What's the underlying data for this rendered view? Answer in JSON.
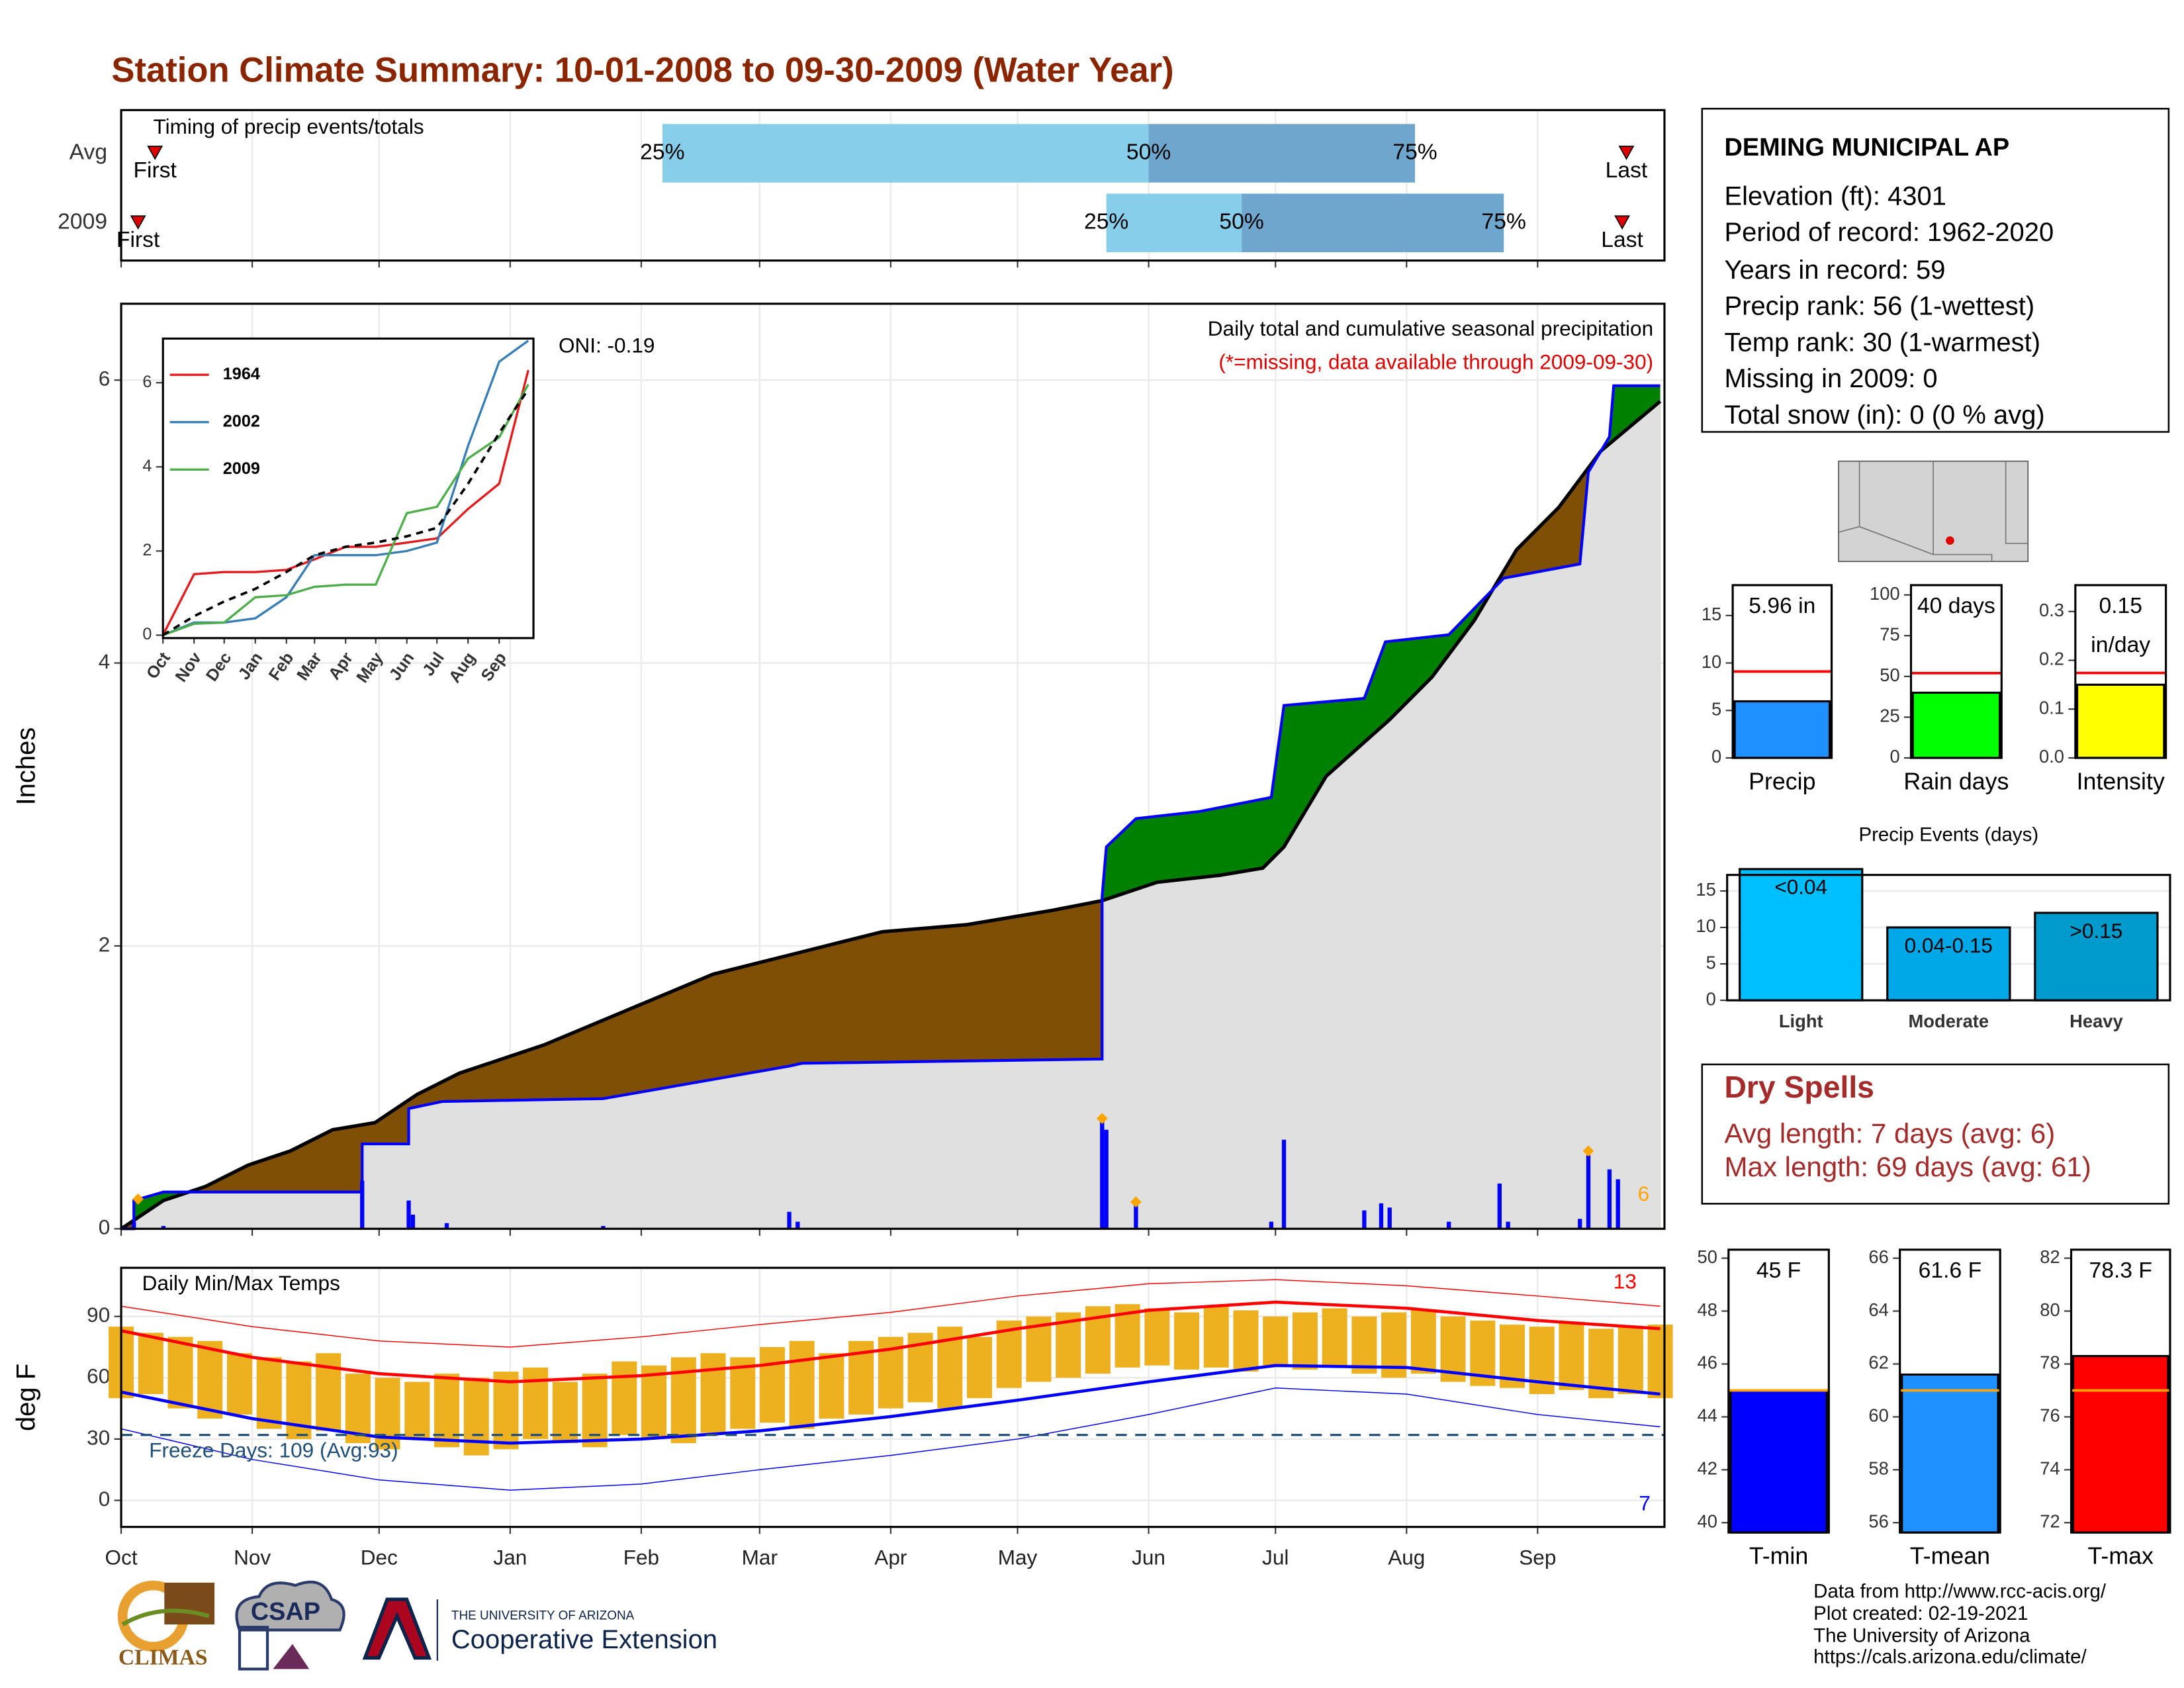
{
  "title": "Station Climate Summary: 10-01-2008 to 09-30-2009 (Water Year)",
  "station": {
    "name": "DEMING MUNICIPAL AP",
    "lines": [
      "Elevation (ft): 4301",
      "Period of record: 1962-2020",
      "Years in record: 59",
      "Precip rank: 56 (1-wettest)",
      "Temp rank: 30 (1-warmest)",
      "Missing in 2009: 0",
      "Total snow (in): 0 (0 % avg)"
    ]
  },
  "dry_spells": {
    "title": "Dry Spells",
    "lines": [
      "Avg length: 7 days (avg: 6)",
      "Max length: 69 days (avg: 61)"
    ]
  },
  "credits": [
    "Data from http://www.rcc-acis.org/",
    "Plot created: 02-19-2021",
    "The University of Arizona",
    "https://cals.arizona.edu/climate/"
  ],
  "logos": [
    "CLIMAS",
    "CSAP",
    "THE UNIVERSITY OF ARIZONA",
    "Cooperative Extension"
  ],
  "chart_data": [
    {
      "type": "timing",
      "title": "Timing of precip events/totals",
      "categories": [
        "Avg",
        "2009"
      ],
      "first": [
        8,
        4
      ],
      "p25": [
        128,
        233
      ],
      "p50": [
        243,
        265
      ],
      "p75": [
        306,
        327
      ],
      "last": [
        356,
        355
      ],
      "first_label": "First",
      "last_label": "Last",
      "pct_labels": [
        "25%",
        "50%",
        "75%"
      ],
      "colors": [
        "#87ceeb",
        "#6ea6cd"
      ],
      "marker_color": "#e00000",
      "xlim": [
        0,
        365
      ],
      "xticks": [
        0,
        31,
        61,
        92,
        123,
        151,
        182,
        212,
        243,
        273,
        304,
        335
      ]
    },
    {
      "type": "cumulative",
      "ylabel": "Inches",
      "oni": "ONI: -0.19",
      "annotations": [
        "Daily total and cumulative seasonal precipitation",
        "(*=missing, data available through 2009-09-30)"
      ],
      "record_count": 6,
      "xlim": [
        0,
        365
      ],
      "xticks": [
        0,
        31,
        61,
        92,
        123,
        151,
        182,
        212,
        243,
        273,
        304,
        335
      ],
      "ylim": [
        0,
        6.54
      ],
      "yticks": [
        0,
        2,
        4,
        6
      ],
      "observed": {
        "x": [
          0,
          3,
          3,
          10,
          57,
          57,
          68,
          68,
          76,
          114,
          158,
          161,
          232,
          232,
          233,
          240,
          255,
          272,
          275,
          294,
          299,
          314,
          327,
          345,
          347,
          352,
          353,
          364
        ],
        "values": [
          0,
          0,
          0.2,
          0.26,
          0.26,
          0.6,
          0.6,
          0.85,
          0.9,
          0.92,
          1.15,
          1.17,
          1.2,
          2.35,
          2.7,
          2.9,
          2.95,
          3.05,
          3.7,
          3.75,
          4.15,
          4.2,
          4.6,
          4.7,
          5.35,
          5.6,
          5.96,
          5.96
        ]
      },
      "average": {
        "x": [
          0,
          10,
          20,
          30,
          40,
          50,
          60,
          70,
          80,
          100,
          120,
          140,
          160,
          180,
          200,
          220,
          232,
          245,
          260,
          270,
          275,
          285,
          300,
          310,
          320,
          330,
          340,
          350,
          364
        ],
        "values": [
          0,
          0.2,
          0.3,
          0.45,
          0.55,
          0.7,
          0.75,
          0.95,
          1.1,
          1.3,
          1.55,
          1.8,
          1.95,
          2.1,
          2.15,
          2.25,
          2.32,
          2.45,
          2.5,
          2.55,
          2.7,
          3.2,
          3.6,
          3.9,
          4.3,
          4.8,
          5.1,
          5.5,
          5.85
        ]
      },
      "daily": {
        "x": [
          3,
          10,
          57,
          68,
          69,
          77,
          114,
          158,
          160,
          232,
          233,
          240,
          272,
          275,
          294,
          298,
          300,
          314,
          326,
          328,
          345,
          347,
          352,
          354
        ],
        "values": [
          0.05,
          0.02,
          0.34,
          0.2,
          0.1,
          0.04,
          0.02,
          0.12,
          0.05,
          0.77,
          0.7,
          0.18,
          0.05,
          0.63,
          0.13,
          0.18,
          0.15,
          0.05,
          0.32,
          0.05,
          0.07,
          0.52,
          0.42,
          0.35
        ]
      },
      "records": {
        "x": [
          4,
          232,
          240,
          347
        ],
        "values": [
          0.21,
          0.78,
          0.19,
          0.55
        ]
      },
      "colors": {
        "deficit": "#7f4f05",
        "surplus": "#008000",
        "base": "#e0e0e0",
        "observed": "#0000ff",
        "average": "#000000",
        "record": "#ffa500"
      }
    },
    {
      "type": "line",
      "xlim": [
        0,
        365
      ],
      "xticks": [
        {
          "value": 0,
          "label": "Oct"
        },
        {
          "value": 31,
          "label": "Nov"
        },
        {
          "value": 61,
          "label": "Dec"
        },
        {
          "value": 92,
          "label": "Jan"
        },
        {
          "value": 123,
          "label": "Feb"
        },
        {
          "value": 151,
          "label": "Mar"
        },
        {
          "value": 182,
          "label": "Apr"
        },
        {
          "value": 212,
          "label": "May"
        },
        {
          "value": 243,
          "label": "Jun"
        },
        {
          "value": 273,
          "label": "Jul"
        },
        {
          "value": 304,
          "label": "Aug"
        },
        {
          "value": 335,
          "label": "Sep"
        }
      ],
      "ylim": [
        -0.07,
        7.05
      ],
      "yticks": [
        0,
        2,
        4,
        6
      ],
      "x": [
        0,
        31,
        61,
        92,
        123,
        151,
        182,
        212,
        243,
        273,
        304,
        335,
        364
      ],
      "series": [
        {
          "name": "1964",
          "color": "#e41a1c",
          "values": [
            0,
            1.45,
            1.5,
            1.5,
            1.55,
            1.8,
            2.1,
            2.1,
            2.2,
            2.3,
            3.0,
            3.6,
            6.3
          ]
        },
        {
          "name": "2002",
          "color": "#377eb8",
          "values": [
            0,
            0.3,
            0.3,
            0.4,
            0.9,
            1.9,
            1.9,
            1.9,
            2.0,
            2.2,
            4.5,
            6.5,
            7.0
          ]
        },
        {
          "name": "2009",
          "color": "#4daf4a",
          "values": [
            0,
            0.27,
            0.3,
            0.9,
            0.95,
            1.15,
            1.2,
            1.2,
            2.9,
            3.05,
            4.2,
            4.7,
            5.96
          ]
        }
      ],
      "average": [
        0,
        0.45,
        0.8,
        1.1,
        1.5,
        1.9,
        2.1,
        2.2,
        2.35,
        2.55,
        3.6,
        4.8,
        5.85
      ]
    },
    {
      "type": "temps",
      "title": "Daily Min/Max Temps",
      "ylabel": "deg F",
      "record_high_count": 13,
      "record_low_count": 7,
      "freeze_label": "Freeze Days: 109 (Avg:93)",
      "freeze_threshold": 32,
      "xlim": [
        0,
        365
      ],
      "xticks": [
        {
          "value": 0,
          "label": "Oct"
        },
        {
          "value": 31,
          "label": "Nov"
        },
        {
          "value": 61,
          "label": "Dec"
        },
        {
          "value": 92,
          "label": "Jan"
        },
        {
          "value": 123,
          "label": "Feb"
        },
        {
          "value": 151,
          "label": "Mar"
        },
        {
          "value": 182,
          "label": "Apr"
        },
        {
          "value": 212,
          "label": "May"
        },
        {
          "value": 243,
          "label": "Jun"
        },
        {
          "value": 273,
          "label": "Jul"
        },
        {
          "value": 304,
          "label": "Aug"
        },
        {
          "value": 335,
          "label": "Sep"
        }
      ],
      "ylim": [
        -13,
        113.8
      ],
      "yticks": [
        0,
        30,
        60,
        90
      ],
      "normals_x": [
        0,
        31,
        61,
        92,
        123,
        151,
        182,
        212,
        243,
        273,
        304,
        335,
        364
      ],
      "avg_max": [
        83,
        70,
        62,
        58,
        61,
        66,
        74,
        84,
        93,
        97,
        94,
        88,
        84
      ],
      "avg_min": [
        53,
        40,
        31,
        28,
        30,
        34,
        41,
        49,
        58,
        66,
        65,
        58,
        52
      ],
      "record_high": [
        95,
        85,
        78,
        75,
        80,
        86,
        92,
        100,
        106,
        108,
        105,
        100,
        95
      ],
      "record_low": [
        35,
        20,
        10,
        5,
        8,
        15,
        22,
        30,
        42,
        55,
        52,
        42,
        36
      ],
      "x": [
        0,
        7,
        14,
        21,
        28,
        35,
        42,
        49,
        56,
        63,
        70,
        77,
        84,
        91,
        98,
        105,
        112,
        119,
        126,
        133,
        140,
        147,
        154,
        161,
        168,
        175,
        182,
        189,
        196,
        203,
        210,
        217,
        224,
        231,
        238,
        245,
        252,
        259,
        266,
        273,
        280,
        287,
        294,
        301,
        308,
        315,
        322,
        329,
        336,
        343,
        350,
        357,
        364
      ],
      "max": [
        85,
        82,
        80,
        78,
        72,
        70,
        68,
        72,
        62,
        60,
        58,
        62,
        60,
        63,
        65,
        58,
        62,
        68,
        66,
        70,
        72,
        70,
        75,
        78,
        72,
        78,
        80,
        82,
        85,
        80,
        88,
        90,
        92,
        95,
        96,
        94,
        92,
        95,
        93,
        90,
        92,
        94,
        90,
        92,
        93,
        90,
        88,
        86,
        85,
        87,
        84,
        85,
        86
      ],
      "min": [
        50,
        52,
        45,
        40,
        42,
        35,
        30,
        34,
        28,
        25,
        30,
        26,
        22,
        25,
        30,
        28,
        26,
        32,
        30,
        28,
        33,
        35,
        38,
        35,
        40,
        42,
        45,
        48,
        45,
        50,
        55,
        58,
        60,
        62,
        65,
        66,
        64,
        65,
        63,
        66,
        64,
        65,
        62,
        60,
        62,
        58,
        56,
        55,
        52,
        54,
        50,
        52,
        50
      ],
      "colors": {
        "bars": "#edb120",
        "max": "#ff0000",
        "min": "#0000ff",
        "freeze": "#1f4e79"
      }
    },
    {
      "type": "bar",
      "categories": [
        "Precip"
      ],
      "values": [
        5.96
      ],
      "value_labels": [
        "5.96 in"
      ],
      "average": 9.1,
      "color": "#1e90ff",
      "avg_color": "#ff0000",
      "ylim": [
        0,
        18.2
      ],
      "yticks": [
        0,
        5,
        10,
        15
      ]
    },
    {
      "type": "bar",
      "categories": [
        "Rain days"
      ],
      "values": [
        40
      ],
      "value_labels": [
        "40 days"
      ],
      "average": 52,
      "color": "#00ff00",
      "avg_color": "#ff0000",
      "ylim": [
        0,
        106
      ],
      "yticks": [
        0,
        25,
        50,
        75,
        100
      ]
    },
    {
      "type": "bar",
      "categories": [
        "Intensity"
      ],
      "values": [
        0.15
      ],
      "value_labels": [
        "0.15 in/day"
      ],
      "average": 0.174,
      "color": "#ffff00",
      "avg_color": "#ff0000",
      "ylim": [
        0,
        0.354
      ],
      "yticks": [
        {
          "value": 0,
          "label": "0.0"
        },
        0.1,
        0.2,
        0.3
      ]
    },
    {
      "type": "bar",
      "title": "Precip Events (days)",
      "categories": [
        "Light",
        "Moderate",
        "Heavy"
      ],
      "values": [
        18,
        10,
        12
      ],
      "bar_labels": [
        "<0.04",
        "0.04-0.15",
        ">0.15"
      ],
      "colors": [
        "#00bfff",
        "#00a8e8",
        "#009acd"
      ],
      "grid": true,
      "ylim": [
        0,
        17.2
      ],
      "yticks": [
        0,
        5,
        10,
        15
      ]
    },
    {
      "type": "bar",
      "categories": [
        "T-min"
      ],
      "values": [
        45
      ],
      "value_labels": [
        "45 F"
      ],
      "average": 45,
      "color": "#0000ff",
      "avg_color": "#ffa500",
      "ylim": [
        39.63,
        50.32
      ],
      "yticks": [
        40,
        42,
        44,
        46,
        48,
        50
      ]
    },
    {
      "type": "bar",
      "categories": [
        "T-mean"
      ],
      "values": [
        61.6
      ],
      "value_labels": [
        "61.6 F"
      ],
      "average": 61,
      "color": "#1e90ff",
      "avg_color": "#ffa500",
      "ylim": [
        55.63,
        66.32
      ],
      "yticks": [
        56,
        58,
        60,
        62,
        64,
        66
      ]
    },
    {
      "type": "bar",
      "categories": [
        "T-max"
      ],
      "values": [
        78.3
      ],
      "value_labels": [
        "78.3 F"
      ],
      "average": 77,
      "color": "#ff0000",
      "avg_color": "#ffa500",
      "ylim": [
        71.63,
        82.32
      ],
      "yticks": [
        72,
        74,
        76,
        78,
        80,
        82
      ]
    }
  ]
}
